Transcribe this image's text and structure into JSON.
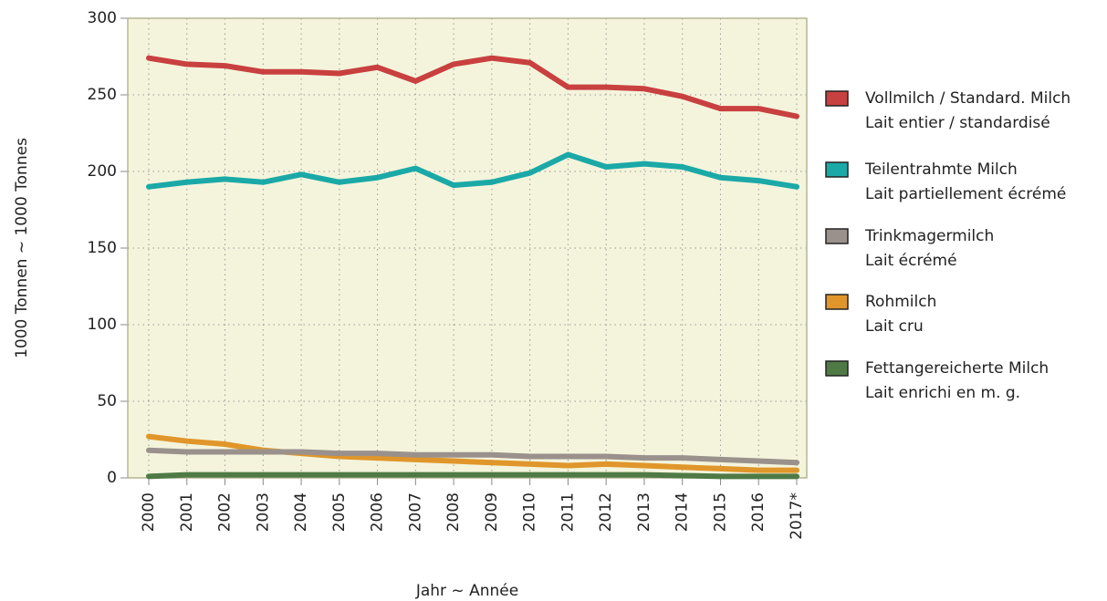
{
  "chart_data": {
    "type": "line",
    "ylabel": "1000 Tonnen   ~   1000 Tonnes",
    "xlabel": "Jahr   ~   Année",
    "categories": [
      "2000",
      "2001",
      "2002",
      "2003",
      "2004",
      "2005",
      "2006",
      "2007",
      "2008",
      "2009",
      "2010",
      "2011",
      "2012",
      "2013",
      "2014",
      "2015",
      "2016",
      "2017*"
    ],
    "ylim": [
      0,
      300
    ],
    "yticks": [
      0,
      50,
      100,
      150,
      200,
      250,
      300
    ],
    "grid": true,
    "series": [
      {
        "name": [
          "Vollmilch / Standard. Milch",
          "Lait entier / standardisé"
        ],
        "color": "#c8403f",
        "values": [
          274,
          270,
          269,
          265,
          265,
          264,
          268,
          259,
          270,
          274,
          271,
          255,
          255,
          254,
          249,
          241,
          241,
          236
        ]
      },
      {
        "name": [
          "Teilentrahmte Milch",
          "Lait partiellement écrémé"
        ],
        "color": "#1aa9a7",
        "values": [
          190,
          193,
          195,
          193,
          198,
          193,
          196,
          202,
          191,
          193,
          199,
          211,
          203,
          205,
          203,
          196,
          194,
          190
        ]
      },
      {
        "name": [
          "Trinkmagermilch",
          "Lait écrémé"
        ],
        "color": "#9a918c",
        "values": [
          18,
          17,
          17,
          17,
          17,
          16,
          16,
          15,
          15,
          15,
          14,
          14,
          14,
          13,
          13,
          12,
          11,
          10
        ]
      },
      {
        "name": [
          "Rohmilch",
          "Lait cru"
        ],
        "color": "#e0962a",
        "values": [
          27,
          24,
          22,
          18,
          16,
          14,
          13,
          12,
          11,
          10,
          9,
          8,
          9,
          8,
          7,
          6,
          5,
          5
        ]
      },
      {
        "name": [
          "Fettangereicherte Milch",
          "Lait enrichi en m. g."
        ],
        "color": "#4f7a45",
        "values": [
          1,
          2,
          2,
          2,
          2,
          2,
          2,
          2,
          2,
          2,
          2,
          2,
          2,
          2,
          1.5,
          1,
          1,
          1
        ]
      }
    ]
  }
}
